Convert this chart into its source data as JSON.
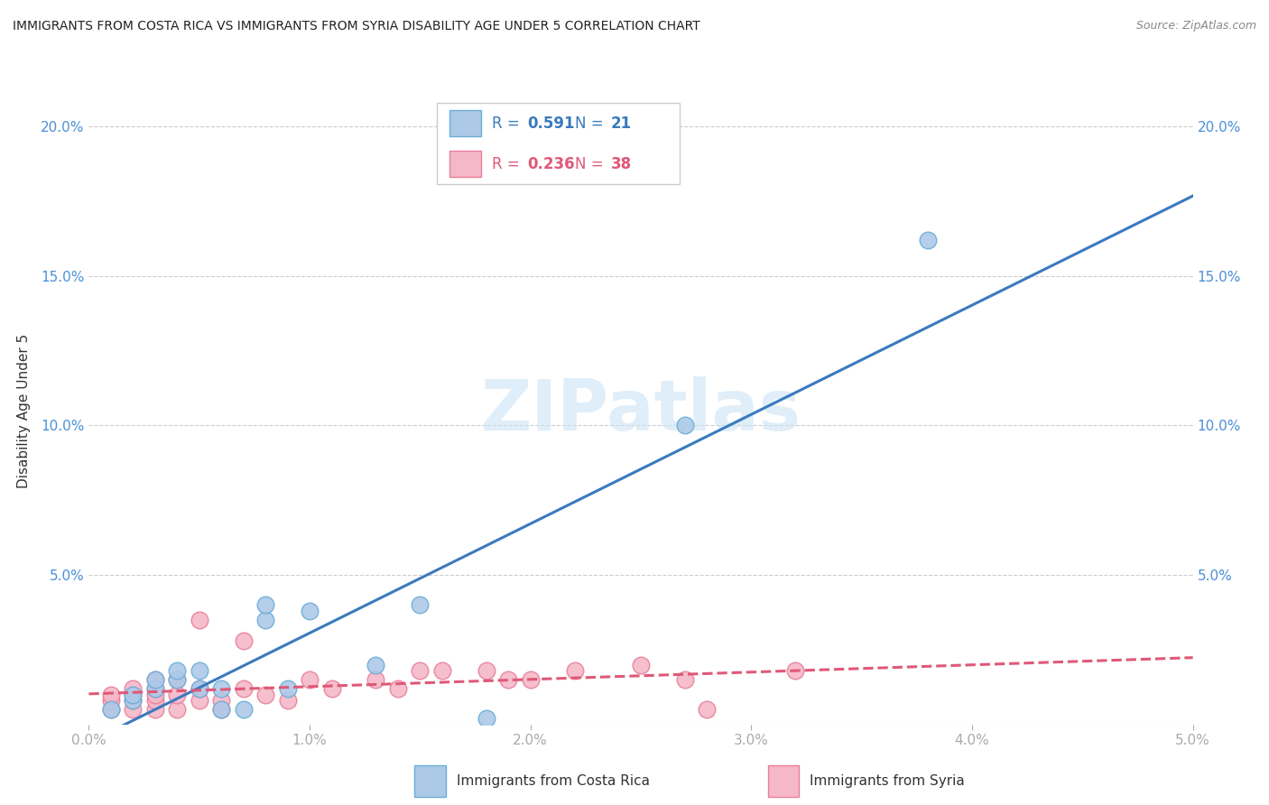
{
  "title": "IMMIGRANTS FROM COSTA RICA VS IMMIGRANTS FROM SYRIA DISABILITY AGE UNDER 5 CORRELATION CHART",
  "source": "Source: ZipAtlas.com",
  "ylabel": "Disability Age Under 5",
  "xlim": [
    0.0,
    0.05
  ],
  "ylim": [
    0.0,
    0.21
  ],
  "xticks": [
    0.0,
    0.01,
    0.02,
    0.03,
    0.04,
    0.05
  ],
  "yticks": [
    0.0,
    0.05,
    0.1,
    0.15,
    0.2
  ],
  "xticklabels": [
    "0.0%",
    "1.0%",
    "2.0%",
    "3.0%",
    "4.0%",
    "5.0%"
  ],
  "yticklabels": [
    "",
    "5.0%",
    "10.0%",
    "15.0%",
    "20.0%"
  ],
  "watermark": "ZIPatlas",
  "legend1_r": "0.591",
  "legend1_n": "21",
  "legend2_r": "0.236",
  "legend2_n": "38",
  "costa_rica_color": "#adc9e8",
  "costa_rica_edge_color": "#6aaed6",
  "costa_rica_line_color": "#3a7abf",
  "syria_color": "#f4b8c8",
  "syria_edge_color": "#e87f9a",
  "syria_line_color": "#e05878",
  "tick_color": "#4a90d9",
  "costa_rica_points": [
    [
      0.001,
      0.005
    ],
    [
      0.002,
      0.008
    ],
    [
      0.002,
      0.01
    ],
    [
      0.003,
      0.012
    ],
    [
      0.003,
      0.015
    ],
    [
      0.004,
      0.015
    ],
    [
      0.004,
      0.018
    ],
    [
      0.005,
      0.012
    ],
    [
      0.005,
      0.018
    ],
    [
      0.006,
      0.005
    ],
    [
      0.006,
      0.012
    ],
    [
      0.007,
      0.005
    ],
    [
      0.008,
      0.035
    ],
    [
      0.008,
      0.04
    ],
    [
      0.009,
      0.012
    ],
    [
      0.01,
      0.038
    ],
    [
      0.013,
      0.02
    ],
    [
      0.015,
      0.04
    ],
    [
      0.018,
      0.002
    ],
    [
      0.027,
      0.1
    ],
    [
      0.038,
      0.162
    ]
  ],
  "syria_points": [
    [
      0.001,
      0.005
    ],
    [
      0.001,
      0.008
    ],
    [
      0.001,
      0.01
    ],
    [
      0.002,
      0.005
    ],
    [
      0.002,
      0.008
    ],
    [
      0.002,
      0.01
    ],
    [
      0.002,
      0.012
    ],
    [
      0.003,
      0.005
    ],
    [
      0.003,
      0.008
    ],
    [
      0.003,
      0.01
    ],
    [
      0.003,
      0.012
    ],
    [
      0.003,
      0.015
    ],
    [
      0.004,
      0.005
    ],
    [
      0.004,
      0.01
    ],
    [
      0.004,
      0.015
    ],
    [
      0.005,
      0.008
    ],
    [
      0.005,
      0.012
    ],
    [
      0.005,
      0.035
    ],
    [
      0.006,
      0.005
    ],
    [
      0.006,
      0.008
    ],
    [
      0.007,
      0.012
    ],
    [
      0.007,
      0.028
    ],
    [
      0.008,
      0.01
    ],
    [
      0.009,
      0.008
    ],
    [
      0.01,
      0.015
    ],
    [
      0.011,
      0.012
    ],
    [
      0.013,
      0.015
    ],
    [
      0.014,
      0.012
    ],
    [
      0.015,
      0.018
    ],
    [
      0.016,
      0.018
    ],
    [
      0.018,
      0.018
    ],
    [
      0.019,
      0.015
    ],
    [
      0.02,
      0.015
    ],
    [
      0.022,
      0.018
    ],
    [
      0.025,
      0.02
    ],
    [
      0.027,
      0.015
    ],
    [
      0.028,
      0.005
    ],
    [
      0.032,
      0.018
    ]
  ]
}
